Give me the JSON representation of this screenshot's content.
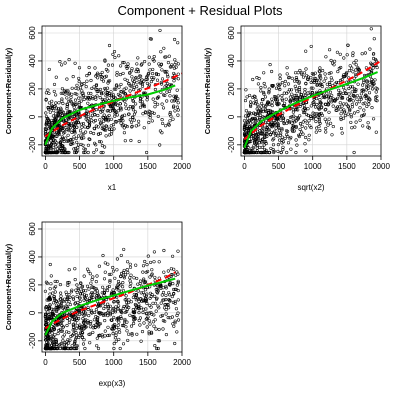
{
  "title": "Component + Residual Plots",
  "chart_data": [
    {
      "type": "scatter",
      "panel": "top-left",
      "xlabel": "x1",
      "ylabel": "Component+Residual(y)",
      "xlim": [
        -50,
        2000
      ],
      "ylim": [
        -280,
        650
      ],
      "x_ticks": [
        0,
        500,
        1000,
        1500,
        2000
      ],
      "y_ticks": [
        -200,
        0,
        200,
        400,
        600
      ],
      "grid": true,
      "series": [
        {
          "kind": "points",
          "count": 1000,
          "x_range": [
            0,
            1950
          ],
          "trend": "sqrt",
          "color": "#000000"
        },
        {
          "kind": "dashed-line",
          "color": "#ff0000",
          "x": [
            0,
            250,
            500,
            750,
            1000,
            1250,
            1500,
            1750,
            2000
          ],
          "y": [
            -140,
            -60,
            5,
            60,
            110,
            160,
            205,
            255,
            310
          ]
        },
        {
          "kind": "smooth-line",
          "color": "#00cc00",
          "x": [
            0,
            100,
            250,
            500,
            750,
            1000,
            1250,
            1500,
            1750,
            1900
          ],
          "y": [
            -200,
            -80,
            -10,
            50,
            85,
            115,
            140,
            160,
            195,
            225
          ]
        }
      ]
    },
    {
      "type": "scatter",
      "panel": "top-right",
      "xlabel": "sqrt(x2)",
      "ylabel": "Component+Residual(y)",
      "xlim": [
        -50,
        2000
      ],
      "ylim": [
        -280,
        650
      ],
      "x_ticks": [
        0,
        500,
        1000,
        1500,
        2000
      ],
      "y_ticks": [
        -200,
        0,
        200,
        400,
        600
      ],
      "grid": true,
      "series": [
        {
          "kind": "points",
          "count": 1000,
          "x_range": [
            0,
            1950
          ],
          "trend": "sqrt",
          "color": "#000000"
        },
        {
          "kind": "dashed-line",
          "color": "#ff0000",
          "x": [
            0,
            250,
            500,
            750,
            1000,
            1250,
            1500,
            1750,
            2000
          ],
          "y": [
            -160,
            -60,
            15,
            80,
            140,
            200,
            260,
            325,
            400
          ]
        },
        {
          "kind": "smooth-line",
          "color": "#00cc00",
          "x": [
            0,
            100,
            250,
            500,
            750,
            1000,
            1250,
            1500,
            1750,
            1950
          ],
          "y": [
            -220,
            -100,
            -30,
            40,
            100,
            150,
            195,
            235,
            280,
            320
          ]
        }
      ]
    },
    {
      "type": "scatter",
      "panel": "bottom-left",
      "xlabel": "exp(x3)",
      "ylabel": "Component+Residual(y)",
      "xlim": [
        -50,
        2000
      ],
      "ylim": [
        -280,
        650
      ],
      "x_ticks": [
        0,
        500,
        1000,
        1500,
        2000
      ],
      "y_ticks": [
        -200,
        0,
        200,
        400,
        600
      ],
      "grid": true,
      "series": [
        {
          "kind": "points",
          "count": 1000,
          "x_range": [
            0,
            1950
          ],
          "trend": "flat",
          "color": "#000000"
        },
        {
          "kind": "dashed-line",
          "color": "#ff0000",
          "x": [
            0,
            250,
            500,
            750,
            1000,
            1250,
            1500,
            1750,
            1900
          ],
          "y": [
            -110,
            -40,
            15,
            60,
            105,
            150,
            200,
            250,
            290
          ]
        },
        {
          "kind": "smooth-line",
          "color": "#00cc00",
          "x": [
            0,
            100,
            250,
            500,
            750,
            1000,
            1250,
            1500,
            1750,
            1900
          ],
          "y": [
            -160,
            -60,
            0,
            50,
            90,
            125,
            160,
            195,
            225,
            245
          ]
        }
      ]
    }
  ]
}
